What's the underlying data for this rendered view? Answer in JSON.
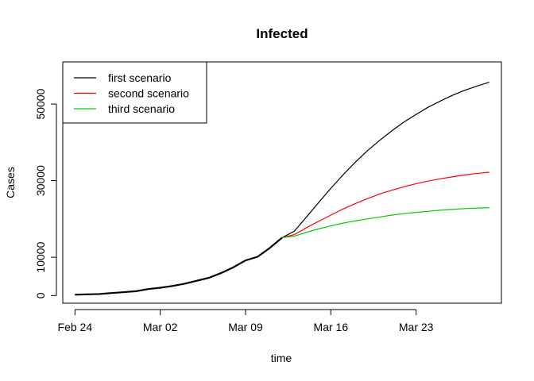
{
  "chart_data": {
    "type": "line",
    "title": "Infected",
    "xlabel": "time",
    "ylabel": "Cases",
    "x_ticks": [
      {
        "label": "Feb 24",
        "day": 0
      },
      {
        "label": "Mar 02",
        "day": 7
      },
      {
        "label": "Mar 09",
        "day": 14
      },
      {
        "label": "Mar 16",
        "day": 21
      },
      {
        "label": "Mar 23",
        "day": 28
      }
    ],
    "y_ticks": [
      0,
      10000,
      30000,
      50000
    ],
    "xlim": [
      "2020-02-23",
      "2020-03-30"
    ],
    "ylim": [
      -2000,
      61000
    ],
    "legend_position": "top-left",
    "x_dates": [
      "2020-02-24",
      "2020-02-25",
      "2020-02-26",
      "2020-02-27",
      "2020-02-28",
      "2020-02-29",
      "2020-03-01",
      "2020-03-02",
      "2020-03-03",
      "2020-03-04",
      "2020-03-05",
      "2020-03-06",
      "2020-03-07",
      "2020-03-08",
      "2020-03-09",
      "2020-03-10",
      "2020-03-11",
      "2020-03-12",
      "2020-03-13",
      "2020-03-14",
      "2020-03-15",
      "2020-03-16",
      "2020-03-17",
      "2020-03-18",
      "2020-03-19",
      "2020-03-20",
      "2020-03-21",
      "2020-03-22",
      "2020-03-23",
      "2020-03-24",
      "2020-03-25",
      "2020-03-26",
      "2020-03-27",
      "2020-03-28",
      "2020-03-29"
    ],
    "observed": [
      229,
      322,
      400,
      650,
      888,
      1128,
      1694,
      2036,
      2502,
      3089,
      3858,
      4636,
      5883,
      7375,
      9172,
      10149,
      12462,
      15113
    ],
    "series": [
      {
        "name": "first scenario",
        "color": "#000000",
        "values": [
          16800,
          20500,
          24300,
          28000,
          31500,
          34800,
          37800,
          40500,
          43000,
          45300,
          47300,
          49200,
          50800,
          52300,
          53600,
          54700,
          55700,
          56500,
          57300,
          57900
        ]
      },
      {
        "name": "second scenario",
        "color": "#ff0000",
        "values": [
          15900,
          17700,
          19400,
          21000,
          22600,
          24000,
          25300,
          26500,
          27500,
          28400,
          29200,
          29900,
          30500,
          31000,
          31500,
          31900,
          32200,
          32500,
          32700,
          32900
        ]
      },
      {
        "name": "third scenario",
        "color": "#00cd00",
        "values": [
          15500,
          16500,
          17400,
          18200,
          18900,
          19500,
          20000,
          20500,
          21000,
          21400,
          21700,
          22000,
          22300,
          22500,
          22700,
          22850,
          22950,
          23050,
          23150,
          23200
        ]
      }
    ]
  }
}
